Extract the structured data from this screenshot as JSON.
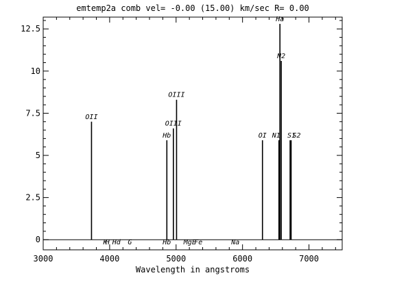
{
  "chart_data": {
    "type": "line",
    "title": "emtemp2a  comb vel= -0.00 (15.00) km/sec R= 0.00",
    "xlabel": "Wavelength in angstroms",
    "ylabel": "",
    "xlim": [
      3000,
      7500
    ],
    "ylim": [
      -0.6,
      13.2
    ],
    "x_ticks": [
      3000,
      4000,
      5000,
      6000,
      7000
    ],
    "x_tick_labels": [
      "3000",
      "4000",
      "5000",
      "6000",
      "7000"
    ],
    "y_ticks": [
      0,
      2.5,
      5,
      7.5,
      10,
      12.5
    ],
    "y_tick_labels": [
      "0",
      "2.5",
      "5",
      "7.5",
      "10",
      "12.5"
    ],
    "grid": false,
    "emission_lines": [
      {
        "label": "OII",
        "x": 3727,
        "y": 7.0
      },
      {
        "label": "Hb",
        "x": 4861,
        "y": 5.9
      },
      {
        "label": "OIII",
        "x": 4959,
        "y": 6.6
      },
      {
        "label": "OIII",
        "x": 5007,
        "y": 8.3
      },
      {
        "label": "OI",
        "x": 6300,
        "y": 5.9
      },
      {
        "label": "N1",
        "x": 6548,
        "y": 5.9
      },
      {
        "label": "Ha",
        "x": 6563,
        "y": 12.8
      },
      {
        "label": "N2",
        "x": 6583,
        "y": 10.6
      },
      {
        "label": "S1",
        "x": 6716,
        "y": 5.9
      },
      {
        "label": "S2",
        "x": 6731,
        "y": 5.9
      }
    ],
    "absorption_labels": [
      {
        "label": "K",
        "x": 3934
      },
      {
        "label": "H",
        "x": 3968
      },
      {
        "label": "Hd",
        "x": 4102
      },
      {
        "label": "G",
        "x": 4304
      },
      {
        "label": "Hb",
        "x": 4861
      },
      {
        "label": "Mg",
        "x": 5175
      },
      {
        "label": "E",
        "x": 5270
      },
      {
        "label": "Fe",
        "x": 5335
      },
      {
        "label": "Na",
        "x": 5893
      }
    ]
  }
}
